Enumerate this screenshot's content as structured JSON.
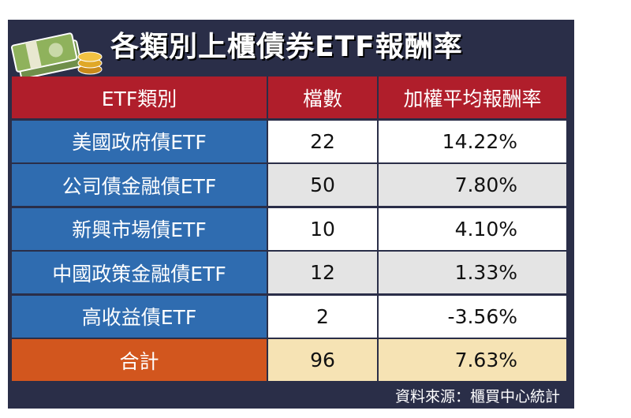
{
  "header": {
    "title": "各類別上櫃債券ETF報酬率"
  },
  "table": {
    "columns": [
      "ETF類別",
      "檔數",
      "加權平均報酬率"
    ],
    "rows": [
      [
        "美國政府債ETF",
        22,
        "14.22%"
      ],
      [
        "公司債金融債ETF",
        50,
        "7.80%"
      ],
      [
        "新興市場債ETF",
        10,
        "4.10%"
      ],
      [
        "中國政策金融債ETF",
        12,
        "1.33%"
      ],
      [
        "高收益債ETF",
        2,
        "-3.56%"
      ]
    ],
    "total": [
      "合計",
      96,
      "7.63%"
    ]
  },
  "source": "資料來源：櫃買中心統計"
}
